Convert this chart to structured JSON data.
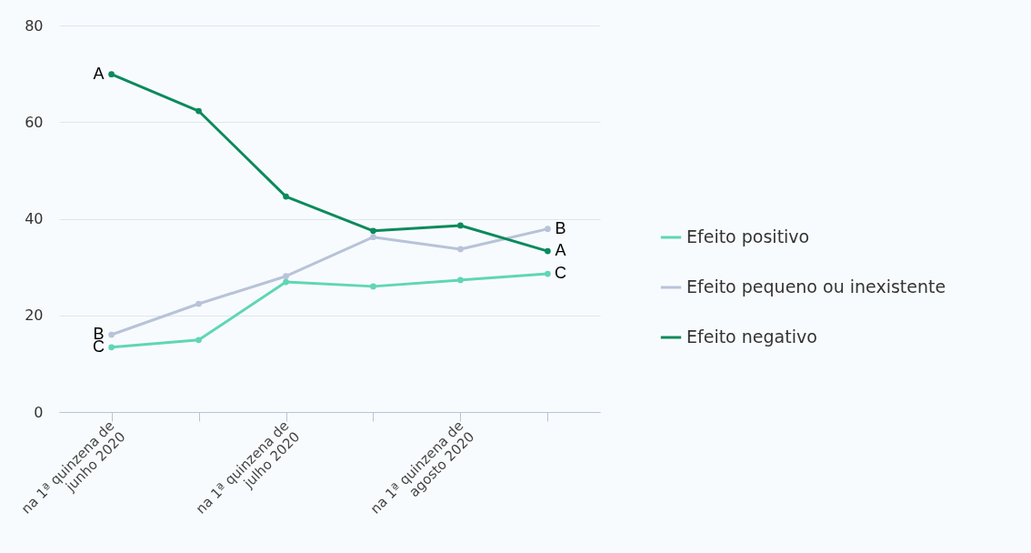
{
  "chart_data": {
    "type": "line",
    "categories": [
      "na 1ª quinzena de junho 2020",
      null,
      "na 1ª quinzena de julho 2020",
      null,
      "na 1ª quinzena de agosto 2020",
      null
    ],
    "series": [
      {
        "name": "Efeito positivo",
        "color": "#5fd6b5",
        "values": [
          13.4,
          14.9,
          26.9,
          26.0,
          27.3,
          28.6
        ]
      },
      {
        "name": "Efeito pequeno ou inexistente",
        "color": "#b8c3d9",
        "values": [
          16.0,
          22.4,
          28.1,
          36.2,
          33.7,
          37.9
        ]
      },
      {
        "name": "Efeito negativo",
        "color": "#0b8a5c",
        "values": [
          69.9,
          62.3,
          44.6,
          37.5,
          38.6,
          33.3
        ]
      }
    ],
    "ylim": [
      0,
      80
    ],
    "yticks": [
      0,
      20,
      40,
      60,
      80
    ],
    "grid": "y",
    "legend": "right",
    "marker": "circle",
    "line_style": "solid",
    "annotations": [
      {
        "text": "A",
        "x": "na 1ª quinzena de junho 2020",
        "y": 69.9
      },
      {
        "text": "B",
        "x": "na 1ª quinzena de junho 2020",
        "y": 16.0
      },
      {
        "text": "C",
        "x": "na 1ª quinzena de junho 2020",
        "y": 13.4
      },
      "B",
      "A",
      "C"
    ]
  }
}
